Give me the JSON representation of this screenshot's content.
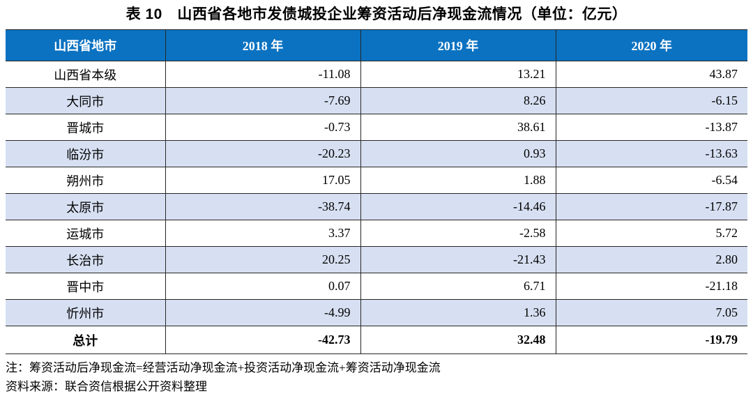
{
  "title": "表 10　山西省各地市发债城投企业筹资活动后净现金流情况（单位：亿元）",
  "colors": {
    "header_bg": "#0B72C1",
    "header_text": "#FFFFFF",
    "stripe_bg": "#D7E0F2",
    "border": "#262626"
  },
  "table": {
    "columns": [
      "山西省地市",
      "2018 年",
      "2019 年",
      "2020 年"
    ],
    "rows": [
      {
        "region": "山西省本级",
        "y2018": "-11.08",
        "y2019": "13.21",
        "y2020": "43.87"
      },
      {
        "region": "大同市",
        "y2018": "-7.69",
        "y2019": "8.26",
        "y2020": "-6.15"
      },
      {
        "region": "晋城市",
        "y2018": "-0.73",
        "y2019": "38.61",
        "y2020": "-13.87"
      },
      {
        "region": "临汾市",
        "y2018": "-20.23",
        "y2019": "0.93",
        "y2020": "-13.63"
      },
      {
        "region": "朔州市",
        "y2018": "17.05",
        "y2019": "1.88",
        "y2020": "-6.54"
      },
      {
        "region": "太原市",
        "y2018": "-38.74",
        "y2019": "-14.46",
        "y2020": "-17.87"
      },
      {
        "region": "运城市",
        "y2018": "3.37",
        "y2019": "-2.58",
        "y2020": "5.72"
      },
      {
        "region": "长治市",
        "y2018": "20.25",
        "y2019": "-21.43",
        "y2020": "2.80"
      },
      {
        "region": "晋中市",
        "y2018": "0.07",
        "y2019": "6.71",
        "y2020": "-21.18"
      },
      {
        "region": "忻州市",
        "y2018": "-4.99",
        "y2019": "1.36",
        "y2020": "7.05"
      }
    ],
    "total": {
      "region": "总计",
      "y2018": "-42.73",
      "y2019": "32.48",
      "y2020": "-19.79"
    }
  },
  "notes": {
    "note": "注：筹资活动后净现金流=经营活动净现金流+投资活动净现金流+筹资活动净现金流",
    "source": "资料来源：联合资信根据公开资料整理"
  }
}
